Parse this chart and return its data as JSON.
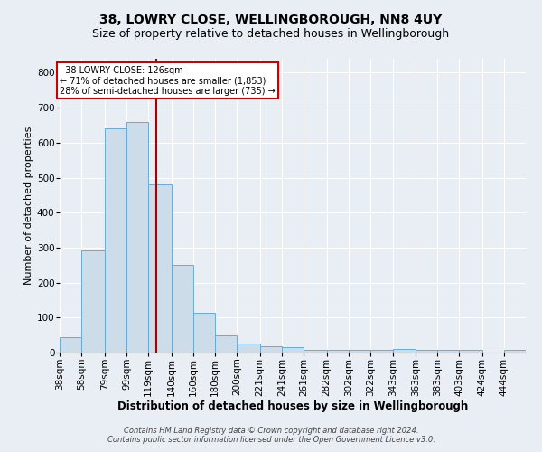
{
  "title": "38, LOWRY CLOSE, WELLINGBOROUGH, NN8 4UY",
  "subtitle": "Size of property relative to detached houses in Wellingborough",
  "xlabel": "Distribution of detached houses by size in Wellingborough",
  "ylabel": "Number of detached properties",
  "footnote1": "Contains HM Land Registry data © Crown copyright and database right 2024.",
  "footnote2": "Contains public sector information licensed under the Open Government Licence v3.0.",
  "bin_labels": [
    "38sqm",
    "58sqm",
    "79sqm",
    "99sqm",
    "119sqm",
    "140sqm",
    "160sqm",
    "180sqm",
    "200sqm",
    "221sqm",
    "241sqm",
    "261sqm",
    "282sqm",
    "302sqm",
    "322sqm",
    "343sqm",
    "363sqm",
    "383sqm",
    "403sqm",
    "424sqm",
    "444sqm"
  ],
  "bar_heights": [
    45,
    293,
    640,
    660,
    480,
    250,
    115,
    50,
    27,
    17,
    15,
    8,
    8,
    8,
    8,
    10,
    8,
    8,
    8,
    0,
    8
  ],
  "bar_color": "#ccdce8",
  "bar_edge_color": "#6aaad4",
  "red_line_x": 126,
  "bin_edges": [
    38,
    58,
    79,
    99,
    119,
    140,
    160,
    180,
    200,
    221,
    241,
    261,
    282,
    302,
    322,
    343,
    363,
    383,
    403,
    424,
    444
  ],
  "annotation_text": "  38 LOWRY CLOSE: 126sqm  \n← 71% of detached houses are smaller (1,853)\n28% of semi-detached houses are larger (735) →",
  "annotation_box_color": "#ffffff",
  "annotation_box_edge_color": "#cc0000",
  "ylim": [
    0,
    840
  ],
  "yticks": [
    0,
    100,
    200,
    300,
    400,
    500,
    600,
    700,
    800
  ],
  "bg_color": "#e8eef4",
  "plot_bg_color": "#e8eef4",
  "grid_color": "#ffffff",
  "title_fontsize": 10,
  "subtitle_fontsize": 9,
  "axis_label_fontsize": 8.5,
  "ylabel_fontsize": 8,
  "tick_fontsize": 7.5,
  "footnote_fontsize": 6
}
